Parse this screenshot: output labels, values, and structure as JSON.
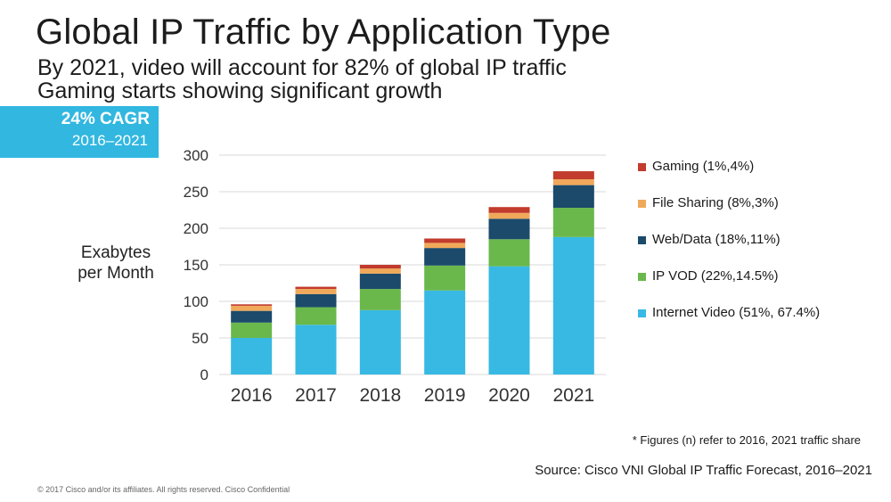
{
  "header": {
    "title": "Global IP Traffic by Application Type",
    "subtitle_1": "By 2021, video will account for 82% of global IP traffic",
    "subtitle_2": "Gaming starts showing significant growth"
  },
  "cagr_badge": {
    "value": "24% CAGR",
    "period": "2016–2021",
    "color": "#31b7e0"
  },
  "footer": {
    "footnote": "* Figures (n) refer to 2016, 2021 traffic share",
    "source": "Source: Cisco VNI Global IP Traffic Forecast, 2016–2021",
    "copyright": "© 2017 Cisco and/or its affiliates. All rights reserved. Cisco Confidential"
  },
  "chart_data": {
    "type": "bar",
    "stacked": true,
    "title": "Global IP Traffic by Application Type",
    "xlabel": "",
    "ylabel_lines": [
      "Exabytes",
      "per Month"
    ],
    "ylim": [
      0,
      300
    ],
    "yticks": [
      0,
      50,
      100,
      150,
      200,
      250,
      300
    ],
    "grid": true,
    "legend_position": "right",
    "categories": [
      "2016",
      "2017",
      "2018",
      "2019",
      "2020",
      "2021"
    ],
    "series": [
      {
        "name": "Internet Video (51%, 67.4%)",
        "color": "#38b9e3",
        "values": [
          50,
          68,
          88,
          115,
          148,
          188
        ]
      },
      {
        "name": "IP VOD (22%,14.5%)",
        "color": "#6ab84c",
        "values": [
          21,
          24,
          29,
          34,
          37,
          40
        ]
      },
      {
        "name": "Web/Data (18%,11%)",
        "color": "#1b4a6b",
        "values": [
          16,
          18,
          21,
          24,
          28,
          31
        ]
      },
      {
        "name": "File Sharing (8%,3%)",
        "color": "#f0a95a",
        "values": [
          7,
          7,
          7,
          7,
          8,
          8
        ]
      },
      {
        "name": "Gaming (1%,4%)",
        "color": "#c23b2d",
        "values": [
          2,
          3,
          5,
          6,
          8,
          11
        ]
      }
    ]
  }
}
